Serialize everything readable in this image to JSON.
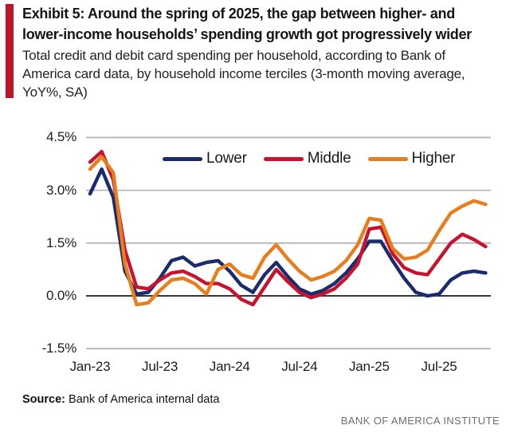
{
  "header": {
    "title_line1": "Exhibit 5: Around the spring of 2025, the gap between higher- and",
    "title_line2": "lower-income households’ spending growth got progressively wider",
    "subtitle": "Total credit and debit card spending per household, according to Bank of America card data, by household income terciles (3-month moving average, YoY%, SA)",
    "accent_color": "#c01527"
  },
  "legend": {
    "items": [
      {
        "label": "Lower",
        "color": "#1b2c6e"
      },
      {
        "label": "Middle",
        "color": "#c8122e"
      },
      {
        "label": "Higher",
        "color": "#e87d1c"
      }
    ]
  },
  "chart_data": {
    "type": "line",
    "title": "Exhibit 5: Around the spring of 2025, the gap between higher- and lower-income households’ spending growth got progressively wider",
    "subtitle": "Total credit and debit card spending per household, according to Bank of America card data, by household income terciles (3-month moving average, YoY%, SA)",
    "xlabel": "",
    "ylabel": "YoY % (3-month moving average, SA)",
    "ylim": [
      -1.5,
      4.5
    ],
    "grid": true,
    "legend_position": "top-center",
    "categories": [
      "Jan-23",
      "Feb-23",
      "Mar-23",
      "Apr-23",
      "May-23",
      "Jun-23",
      "Jul-23",
      "Aug-23",
      "Sep-23",
      "Oct-23",
      "Nov-23",
      "Dec-23",
      "Jan-24",
      "Feb-24",
      "Mar-24",
      "Apr-24",
      "May-24",
      "Jun-24",
      "Jul-24",
      "Aug-24",
      "Sep-24",
      "Oct-24",
      "Nov-24",
      "Dec-24",
      "Jan-25",
      "Feb-25",
      "Mar-25",
      "Apr-25",
      "May-25",
      "Jun-25",
      "Jul-25",
      "Aug-25",
      "Sep-25",
      "Oct-25",
      "Nov-25"
    ],
    "series": [
      {
        "name": "Lower",
        "color": "#1b2c6e",
        "values": [
          2.9,
          3.6,
          2.8,
          0.7,
          0.05,
          0.1,
          0.5,
          1.0,
          1.1,
          0.85,
          0.95,
          1.0,
          0.7,
          0.3,
          0.1,
          0.6,
          0.95,
          0.55,
          0.2,
          0.05,
          0.15,
          0.35,
          0.65,
          1.05,
          1.55,
          1.55,
          1.0,
          0.5,
          0.1,
          0.0,
          0.05,
          0.45,
          0.65,
          0.7,
          0.65
        ]
      },
      {
        "name": "Middle",
        "color": "#c8122e",
        "values": [
          3.8,
          4.1,
          3.3,
          1.3,
          0.25,
          0.2,
          0.45,
          0.65,
          0.7,
          0.55,
          0.35,
          0.35,
          0.2,
          -0.1,
          -0.25,
          0.25,
          0.75,
          0.4,
          0.1,
          -0.05,
          0.05,
          0.2,
          0.5,
          0.9,
          1.9,
          1.95,
          1.2,
          0.8,
          0.65,
          0.6,
          1.05,
          1.5,
          1.75,
          1.6,
          1.4
        ]
      },
      {
        "name": "Higher",
        "color": "#e87d1c",
        "values": [
          3.6,
          3.95,
          3.5,
          0.9,
          -0.25,
          -0.2,
          0.15,
          0.45,
          0.5,
          0.35,
          0.05,
          0.75,
          0.9,
          0.6,
          0.5,
          1.1,
          1.45,
          1.05,
          0.7,
          0.45,
          0.55,
          0.7,
          1.0,
          1.45,
          2.2,
          2.15,
          1.35,
          1.05,
          1.1,
          1.3,
          1.85,
          2.35,
          2.55,
          2.7,
          2.6
        ]
      }
    ],
    "y_ticks": [
      {
        "label": "4.5%",
        "value": 4.5
      },
      {
        "label": "3.0%",
        "value": 3.0
      },
      {
        "label": "1.5%",
        "value": 1.5
      },
      {
        "label": "0.0%",
        "value": 0.0
      },
      {
        "label": "-1.5%",
        "value": -1.5
      }
    ],
    "x_ticks": [
      {
        "label": "Jan-23",
        "index": 0
      },
      {
        "label": "Jul-23",
        "index": 6
      },
      {
        "label": "Jan-24",
        "index": 12
      },
      {
        "label": "Jul-24",
        "index": 18
      },
      {
        "label": "Jan-25",
        "index": 24
      },
      {
        "label": "Jul-25",
        "index": 30
      }
    ],
    "gridline_color": "#b7b7b7",
    "zero_line_color": "#1a1a1a"
  },
  "footer": {
    "source_label": "Source:",
    "source_text": " Bank of America internal data",
    "branding": "BANK OF AMERICA INSTITUTE"
  }
}
